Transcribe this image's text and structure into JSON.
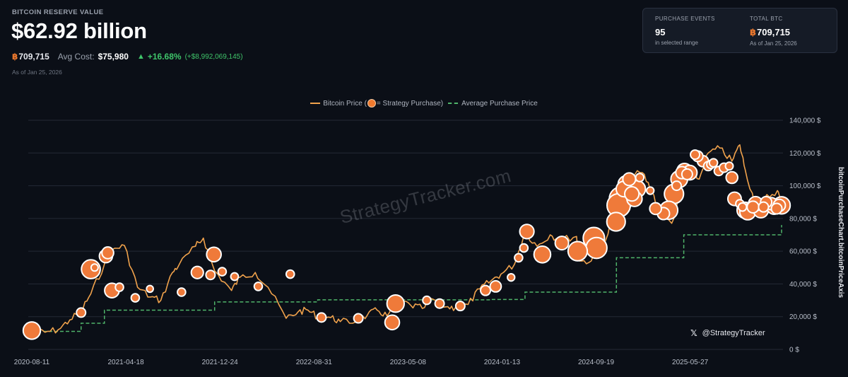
{
  "header": {
    "label": "BITCOIN RESERVE VALUE",
    "value": "$62.92 billion",
    "btc_symbol": "฿",
    "btc_amount": "709,715",
    "avg_cost_label": "Avg Cost:",
    "avg_cost_value": "$75,980",
    "gain_arrow": "▲",
    "gain_pct": "+16.68%",
    "gain_abs": "(+$8,992,069,145)",
    "as_of": "As of Jan 25, 2026"
  },
  "card": {
    "events_label": "PURCHASE EVENTS",
    "events_value": "95",
    "events_sub": "in selected range",
    "total_label": "TOTAL BTC",
    "total_symbol": "฿",
    "total_value": "709,715",
    "total_sub": "As of Jan 25, 2026"
  },
  "legend": {
    "price_label": "Bitcoin Price (",
    "purchase_label": "= Strategy Purchase)",
    "avg_label": "Average Purchase Price"
  },
  "watermark": "StrategyTracker.com",
  "handle": "@StrategyTracker",
  "colors": {
    "price_line": "#f0a24c",
    "bubble_fill": "#ef7a3a",
    "bubble_stroke": "#ffffff",
    "avg_line": "#4fb46a",
    "grid": "#242a36"
  },
  "chart_data": {
    "type": "line",
    "x_tick_labels": [
      "2020-08-11",
      "2021-04-18",
      "2021-12-24",
      "2022-08-31",
      "2023-05-08",
      "2024-01-13",
      "2024-09-19",
      "2025-05-27"
    ],
    "y_tick_labels": [
      "0 $",
      "20,000 $",
      "40,000 $",
      "60,000 $",
      "80,000 $",
      "100,000 $",
      "120,000 $",
      "140,000 $"
    ],
    "ylim": [
      0,
      140000
    ],
    "y_axis_title": "bitcoinPurchaseChart.bitcoinPriceAxis",
    "series": [
      {
        "name": "Bitcoin Price",
        "x": [
          "2020-08-11",
          "2020-09-15",
          "2020-10-20",
          "2020-11-20",
          "2020-12-20",
          "2021-01-15",
          "2021-02-20",
          "2021-03-13",
          "2021-04-14",
          "2021-05-19",
          "2021-06-22",
          "2021-07-20",
          "2021-08-20",
          "2021-09-07",
          "2021-10-20",
          "2021-11-10",
          "2021-12-10",
          "2022-01-24",
          "2022-02-15",
          "2022-03-28",
          "2022-05-01",
          "2022-06-18",
          "2022-07-20",
          "2022-08-15",
          "2022-09-10",
          "2022-10-15",
          "2022-11-09",
          "2022-12-20",
          "2023-01-20",
          "2023-02-15",
          "2023-03-13",
          "2023-04-14",
          "2023-05-15",
          "2023-06-15",
          "2023-07-15",
          "2023-08-17",
          "2023-09-11",
          "2023-10-15",
          "2023-11-15",
          "2023-12-15",
          "2024-01-10",
          "2024-02-15",
          "2024-03-14",
          "2024-04-15",
          "2024-05-20",
          "2024-06-15",
          "2024-07-29",
          "2024-08-05",
          "2024-09-06",
          "2024-10-15",
          "2024-11-12",
          "2024-12-17",
          "2025-01-20",
          "2025-02-15",
          "2025-03-10",
          "2025-04-08",
          "2025-05-10",
          "2025-05-22",
          "2025-06-20",
          "2025-07-14",
          "2025-08-14",
          "2025-09-15",
          "2025-10-06",
          "2025-10-20",
          "2025-11-21",
          "2025-12-10",
          "2026-01-14",
          "2026-01-25"
        ],
        "values": [
          11500,
          10500,
          12000,
          18000,
          23500,
          34000,
          52000,
          61000,
          63500,
          38000,
          32000,
          30000,
          47000,
          52000,
          63000,
          68000,
          48000,
          36000,
          44000,
          47000,
          38000,
          19000,
          23000,
          24000,
          20000,
          19500,
          17000,
          16800,
          21000,
          24000,
          20500,
          30000,
          27000,
          25000,
          30500,
          26000,
          25500,
          27500,
          37000,
          42000,
          46000,
          52000,
          72000,
          63000,
          70000,
          67000,
          69000,
          54000,
          54000,
          67000,
          88000,
          106000,
          108000,
          96000,
          83000,
          77000,
          103000,
          111000,
          104000,
          120000,
          123000,
          115000,
          125000,
          110000,
          85000,
          92000,
          97000,
          89000
        ]
      },
      {
        "name": "Average Purchase Price",
        "x": [
          "2020-08-11",
          "2020-12-20",
          "2021-02-20",
          "2021-12-10",
          "2022-09-10",
          "2023-12-15",
          "2024-03-14",
          "2024-11-12",
          "2025-05-10",
          "2026-01-25"
        ],
        "values": [
          11000,
          16000,
          24000,
          29000,
          30300,
          30500,
          35000,
          56000,
          70000,
          76000
        ]
      }
    ],
    "purchases": {
      "x": [
        "2020-08-11",
        "2020-12-20",
        "2021-01-15",
        "2021-01-25",
        "2021-02-24",
        "2021-03-01",
        "2021-03-12",
        "2021-04-01",
        "2021-05-13",
        "2021-06-21",
        "2021-09-13",
        "2021-10-25",
        "2021-11-29",
        "2021-12-08",
        "2021-12-30",
        "2022-02-01",
        "2022-04-05",
        "2022-06-29",
        "2022-09-20",
        "2022-12-27",
        "2023-03-27",
        "2023-04-05",
        "2023-06-27",
        "2023-07-31",
        "2023-09-24",
        "2023-11-30",
        "2023-12-27",
        "2024-02-06",
        "2024-02-26",
        "2024-03-11",
        "2024-03-19",
        "2024-04-29",
        "2024-06-20",
        "2024-08-01",
        "2024-09-13",
        "2024-09-20",
        "2024-11-11",
        "2024-11-18",
        "2024-11-25",
        "2024-12-02",
        "2024-12-09",
        "2024-12-16",
        "2024-12-23",
        "2024-12-30",
        "2025-01-06",
        "2025-01-13",
        "2025-02-10",
        "2025-02-24",
        "2025-03-17",
        "2025-03-31",
        "2025-04-14",
        "2025-04-21",
        "2025-04-28",
        "2025-05-05",
        "2025-05-12",
        "2025-05-19",
        "2025-05-26",
        "2025-06-09",
        "2025-06-16",
        "2025-06-30",
        "2025-07-14",
        "2025-07-21",
        "2025-07-28",
        "2025-08-11",
        "2025-08-25",
        "2025-09-08",
        "2025-09-15",
        "2025-09-22",
        "2025-10-06",
        "2025-10-13",
        "2025-10-20",
        "2025-10-27",
        "2025-11-10",
        "2025-11-17",
        "2025-12-01",
        "2025-12-08",
        "2025-12-15",
        "2025-12-29",
        "2026-01-05",
        "2026-01-12",
        "2026-01-19",
        "2026-01-25"
      ],
      "values": [
        11500,
        22500,
        49000,
        50000,
        57000,
        59000,
        36000,
        38000,
        31500,
        37000,
        35000,
        47000,
        45500,
        58000,
        47500,
        44500,
        38500,
        46000,
        19500,
        19000,
        16500,
        28000,
        30000,
        28000,
        26500,
        36000,
        38500,
        44000,
        56000,
        62000,
        72000,
        58000,
        65000,
        60000,
        68000,
        62000,
        78000,
        88000,
        92000,
        98000,
        101000,
        104000,
        95000,
        92000,
        98000,
        105000,
        97000,
        86000,
        83000,
        85000,
        95000,
        100000,
        104000,
        108000,
        109000,
        107000,
        108000,
        119000,
        118000,
        115000,
        112000,
        113000,
        114000,
        109000,
        111000,
        112000,
        105000,
        92000,
        89000,
        87000,
        85000,
        84000,
        87000,
        89000,
        85000,
        87000,
        90000,
        89000,
        87000,
        86000,
        88000,
        88000
      ],
      "amounts": [
        22000,
        2000,
        28000,
        300,
        9000,
        6000,
        13000,
        1000,
        1000,
        200,
        1000,
        7000,
        2000,
        13000,
        1000,
        600,
        1000,
        1000,
        2000,
        2000,
        13000,
        22000,
        1000,
        2000,
        2000,
        3000,
        5000,
        500,
        1000,
        1000,
        12000,
        20000,
        10000,
        30000,
        40000,
        38000,
        27000,
        51000,
        55000,
        16000,
        21000,
        8000,
        12000,
        15000,
        20000,
        1000,
        500,
        6000,
        7000,
        25000,
        30000,
        2000,
        20000,
        7000,
        15000,
        4000,
        13000,
        2000,
        4000,
        5000,
        2000,
        1000,
        1000,
        2000,
        2000,
        700,
        6000,
        10000,
        1000,
        1000,
        18000,
        17000,
        6000,
        12000,
        14000,
        3000,
        5000,
        7000,
        13000,
        4000,
        7000,
        22000
      ]
    }
  }
}
